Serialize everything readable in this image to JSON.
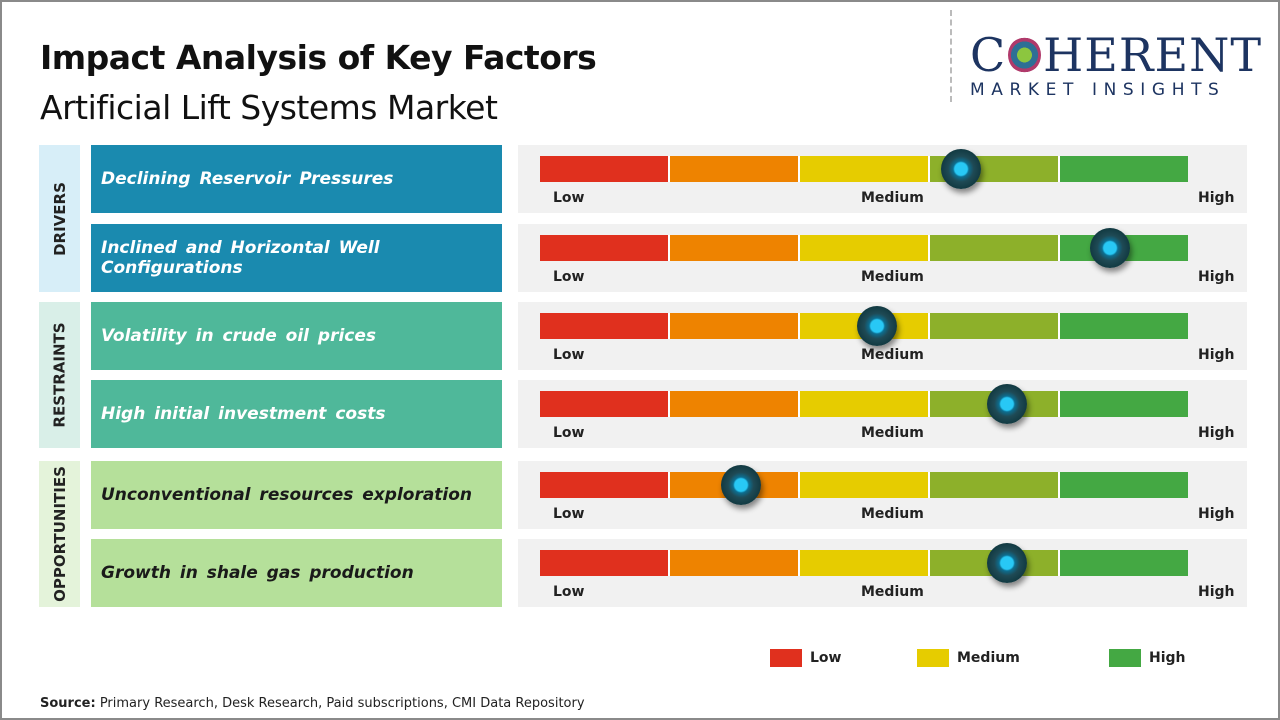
{
  "title": "Impact Analysis of Key Factors",
  "subtitle": "Artificial Lift Systems Market",
  "logo": {
    "line1": "COHERENT",
    "line2": "MARKET INSIGHTS"
  },
  "scale_labels": {
    "low": "Low",
    "medium": "Medium",
    "high": "High"
  },
  "segment_colors": [
    "#e0301e",
    "#ee8300",
    "#e6cc00",
    "#8db02a",
    "#44a843"
  ],
  "groups": [
    {
      "name": "DRIVERS",
      "band_color": "#d7eef8",
      "box_color": "#1a8aaf",
      "text_color": "#ffffff"
    },
    {
      "name": "RESTRAINTS",
      "band_color": "#d9efe8",
      "box_color": "#4fb89a",
      "text_color": "#ffffff"
    },
    {
      "name": "OPPORTUNITIES",
      "band_color": "#e4f3da",
      "box_color": "#b5e09a",
      "text_color": "#1a1a1a"
    }
  ],
  "chart_data": {
    "type": "gauge",
    "scale": [
      "Low",
      "Medium",
      "High"
    ],
    "value_range": [
      0,
      1
    ],
    "factors": [
      {
        "group": "DRIVERS",
        "label": "Declining Reservoir Pressures",
        "impact": 0.65
      },
      {
        "group": "DRIVERS",
        "label": "Inclined and Horizontal Well Configurations",
        "impact": 0.88
      },
      {
        "group": "RESTRAINTS",
        "label": "Volatility in crude oil prices",
        "impact": 0.52
      },
      {
        "group": "RESTRAINTS",
        "label": "High initial investment costs",
        "impact": 0.72
      },
      {
        "group": "OPPORTUNITIES",
        "label": "Unconventional resources exploration",
        "impact": 0.31
      },
      {
        "group": "OPPORTUNITIES",
        "label": "Growth in shale gas production",
        "impact": 0.72
      }
    ]
  },
  "legend": [
    {
      "label": "Low",
      "color": "#e0301e"
    },
    {
      "label": "Medium",
      "color": "#e6cc00"
    },
    {
      "label": "High",
      "color": "#44a843"
    }
  ],
  "source": {
    "label": "Source:",
    "text": " Primary Research, Desk Research, Paid subscriptions, CMI Data Repository"
  }
}
